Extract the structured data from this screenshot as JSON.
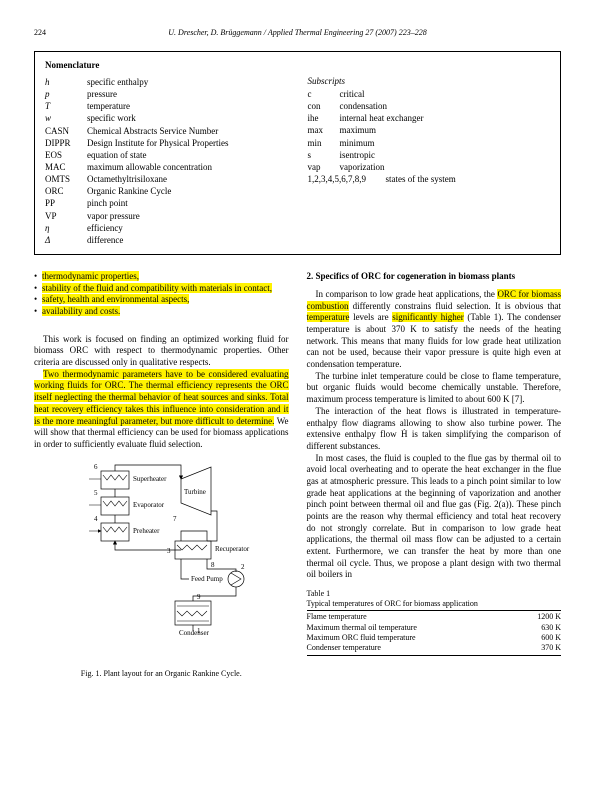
{
  "header": {
    "page_number": "224",
    "running_head": "U. Drescher, D. Brüggemann / Applied Thermal Engineering 27 (2007) 223–228"
  },
  "nomenclature": {
    "title": "Nomenclature",
    "left": [
      {
        "sym": "h",
        "desc": "specific enthalpy",
        "italic": true
      },
      {
        "sym": "p",
        "desc": "pressure",
        "italic": true
      },
      {
        "sym": "T",
        "desc": "temperature",
        "italic": true
      },
      {
        "sym": "w",
        "desc": "specific work",
        "italic": true
      },
      {
        "sym": "CASN",
        "desc": "Chemical Abstracts Service Number",
        "italic": false
      },
      {
        "sym": "DIPPR",
        "desc": "Design Institute for Physical Properties",
        "italic": false
      },
      {
        "sym": "EOS",
        "desc": "equation of state",
        "italic": false
      },
      {
        "sym": "MAC",
        "desc": "maximum allowable concentration",
        "italic": false
      },
      {
        "sym": "OMTS",
        "desc": "Octamethyltrisiloxane",
        "italic": false
      },
      {
        "sym": "ORC",
        "desc": "Organic Rankine Cycle",
        "italic": false
      },
      {
        "sym": "PP",
        "desc": "pinch point",
        "italic": false
      },
      {
        "sym": "VP",
        "desc": "vapor pressure",
        "italic": false
      },
      {
        "sym": "η",
        "desc": "efficiency",
        "italic": true
      },
      {
        "sym": "Δ",
        "desc": "difference",
        "italic": true
      }
    ],
    "subscripts_title": "Subscripts",
    "right": [
      {
        "sym": "c",
        "desc": "critical"
      },
      {
        "sym": "con",
        "desc": "condensation"
      },
      {
        "sym": "ihe",
        "desc": "internal heat exchanger"
      },
      {
        "sym": "max",
        "desc": "maximum"
      },
      {
        "sym": "min",
        "desc": "minimum"
      },
      {
        "sym": "s",
        "desc": "isentropic"
      },
      {
        "sym": "vap",
        "desc": "vaporization"
      },
      {
        "sym": "1,2,3,4,5,6,7,8,9",
        "desc": "states of the system"
      }
    ]
  },
  "left_column": {
    "bullets": [
      "thermodynamic properties,",
      "stability of the fluid and compatibility with materials in contact,",
      "safety, health and environmental aspects,",
      "availability and costs."
    ],
    "para1": "This work is focused on finding an optimized working fluid for biomass ORC with respect to thermodynamic properties. Other criteria are discussed only in qualitative respects.",
    "para2_hl": "Two thermodynamic parameters have to be considered evaluating working fluids for ORC. The thermal efficiency represents the ORC itself neglecting the thermal behavior of heat sources and sinks. Total heat recovery efficiency takes this influence into consideration and it is the more meaningful parameter, but more difficult to determine.",
    "para2_rest": " We will show that thermal efficiency can be used for biomass applications in order to sufficiently evaluate fluid selection.",
    "fig_caption": "Fig. 1.  Plant layout for an Organic Rankine Cycle.",
    "fig_labels": {
      "superheater": "Superheater",
      "evaporator": "Evaporator",
      "preheater": "Preheater",
      "turbine": "Turbine",
      "recuperator": "Recuperator",
      "feedpump": "Feed Pump",
      "condenser": "Condenser",
      "n6": "6",
      "n5": "5",
      "n4": "4",
      "n7": "7",
      "n3": "3",
      "n8": "8",
      "n2": "2",
      "n1": "1",
      "n9": "9"
    }
  },
  "right_column": {
    "section_title": "2. Specifics of ORC for cogeneration in biomass plants",
    "p1_a": "In comparison to low grade heat applications, the ",
    "p1_hl1": "ORC for biomass combustion",
    "p1_b": " differently constrains fluid selection. It is obvious that ",
    "p1_hl2": "temperature",
    "p1_c": " levels are ",
    "p1_hl3": "significantly higher",
    "p1_d": " (Table 1). The condenser temperature is about 370 K to satisfy the needs of the heating network. This means that many fluids for low grade heat utilization can not be used, because their vapor pressure is quite high even at condensation temperature.",
    "p2": "The turbine inlet temperature could be close to flame temperature, but organic fluids would become chemically unstable. Therefore, maximum process temperature is limited to about 600 K [7].",
    "p3": "The interaction of the heat flows is illustrated in temperature-enthalpy flow diagrams allowing to show also turbine power. The extensive enthalpy flow Ḣ is taken simplifying the comparison of different substances.",
    "p4": "In most cases, the fluid is coupled to the flue gas by thermal oil to avoid local overheating and to operate the heat exchanger in the flue gas at atmospheric pressure. This leads to a pinch point similar to low grade heat applications at the beginning of vaporization and another pinch point between thermal oil and flue gas (Fig. 2(a)). These pinch points are the reason why thermal efficiency and total heat recovery do not strongly correlate. But in comparison to low grade heat applications, the thermal oil mass flow can be adjusted to a certain extent. Furthermore, we can transfer the heat by more than one thermal oil cycle. Thus, we propose a plant design with two thermal oil boilers in",
    "table1": {
      "label": "Table 1",
      "caption": "Typical temperatures of ORC for biomass application",
      "rows": [
        {
          "name": "Flame temperature",
          "val": "1200 K"
        },
        {
          "name": "Maximum thermal oil temperature",
          "val": "630 K"
        },
        {
          "name": "Maximum ORC fluid temperature",
          "val": "600 K"
        },
        {
          "name": "Condenser temperature",
          "val": "370 K"
        }
      ]
    }
  }
}
